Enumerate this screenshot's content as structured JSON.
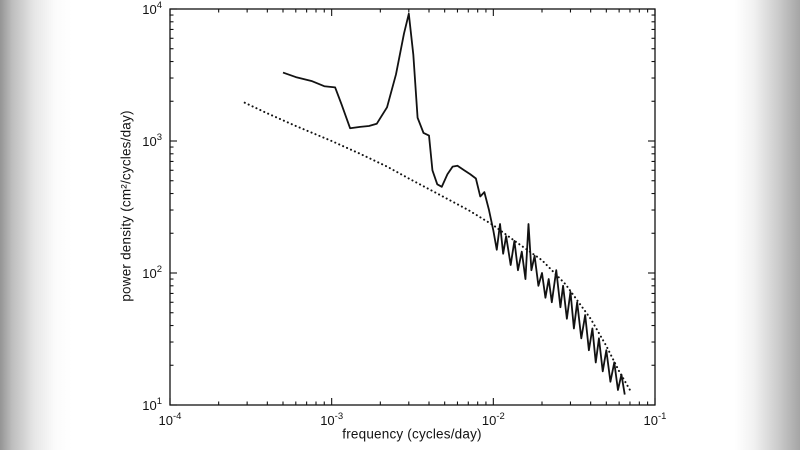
{
  "figure": {
    "background_color": "#ffffff",
    "scan_edge_color": "#a5a5a5",
    "ink_color": "#121212"
  },
  "chart_data": {
    "type": "line",
    "title": "",
    "xlabel": "frequency (cycles/day)",
    "ylabel": "power density (cm²/cycles/day)",
    "xscale": "log",
    "yscale": "log",
    "xlim": [
      0.0001,
      0.1
    ],
    "ylim": [
      10,
      10000
    ],
    "x_exp_range": [
      -4,
      -1
    ],
    "y_exp_range": [
      1,
      4
    ],
    "tick_base": "10",
    "x_tick_exponents": [
      -4,
      -3,
      -2,
      -1
    ],
    "y_tick_exponents": [
      1,
      2,
      3,
      4
    ],
    "grid": false,
    "legend": "none",
    "line_color": "#121212",
    "series": [
      {
        "name": "solid-spectrum-line",
        "style": "solid",
        "points": [
          [
            0.0005,
            3300
          ],
          [
            0.0006,
            3050
          ],
          [
            0.00075,
            2850
          ],
          [
            0.0009,
            2600
          ],
          [
            0.00105,
            2550
          ],
          [
            0.00115,
            1900
          ],
          [
            0.0013,
            1250
          ],
          [
            0.0015,
            1280
          ],
          [
            0.0017,
            1300
          ],
          [
            0.0019,
            1350
          ],
          [
            0.0022,
            1800
          ],
          [
            0.0025,
            3200
          ],
          [
            0.0028,
            6500
          ],
          [
            0.003,
            9200
          ],
          [
            0.0032,
            4500
          ],
          [
            0.0034,
            1500
          ],
          [
            0.0037,
            1150
          ],
          [
            0.004,
            1100
          ],
          [
            0.0042,
            600
          ],
          [
            0.0045,
            470
          ],
          [
            0.0048,
            450
          ],
          [
            0.0052,
            560
          ],
          [
            0.0056,
            640
          ],
          [
            0.006,
            650
          ],
          [
            0.0066,
            600
          ],
          [
            0.0072,
            560
          ],
          [
            0.0078,
            520
          ],
          [
            0.0083,
            380
          ],
          [
            0.0088,
            410
          ],
          [
            0.0094,
            300
          ],
          [
            0.01,
            210
          ],
          [
            0.0105,
            150
          ],
          [
            0.011,
            235
          ],
          [
            0.0115,
            140
          ],
          [
            0.012,
            190
          ],
          [
            0.0128,
            115
          ],
          [
            0.0135,
            175
          ],
          [
            0.0142,
            105
          ],
          [
            0.015,
            145
          ],
          [
            0.0158,
            90
          ],
          [
            0.0165,
            235
          ],
          [
            0.0172,
            105
          ],
          [
            0.018,
            135
          ],
          [
            0.019,
            80
          ],
          [
            0.02,
            100
          ],
          [
            0.021,
            65
          ],
          [
            0.022,
            90
          ],
          [
            0.023,
            60
          ],
          [
            0.0245,
            105
          ],
          [
            0.026,
            55
          ],
          [
            0.027,
            80
          ],
          [
            0.0285,
            45
          ],
          [
            0.03,
            72
          ],
          [
            0.0315,
            38
          ],
          [
            0.033,
            60
          ],
          [
            0.035,
            32
          ],
          [
            0.037,
            48
          ],
          [
            0.039,
            26
          ],
          [
            0.041,
            38
          ],
          [
            0.043,
            21
          ],
          [
            0.045,
            32
          ],
          [
            0.0475,
            18
          ],
          [
            0.05,
            26
          ],
          [
            0.053,
            15
          ],
          [
            0.056,
            21
          ],
          [
            0.059,
            13
          ],
          [
            0.062,
            17
          ],
          [
            0.065,
            12
          ]
        ]
      },
      {
        "name": "dotted-fit-line",
        "style": "dotted",
        "points": [
          [
            0.00029,
            1950
          ],
          [
            0.0004,
            1620
          ],
          [
            0.0006,
            1300
          ],
          [
            0.001,
            1000
          ],
          [
            0.0015,
            800
          ],
          [
            0.0022,
            640
          ],
          [
            0.003,
            520
          ],
          [
            0.0045,
            400
          ],
          [
            0.007,
            300
          ],
          [
            0.01,
            230
          ],
          [
            0.014,
            170
          ],
          [
            0.02,
            125
          ],
          [
            0.028,
            82
          ],
          [
            0.04,
            45
          ],
          [
            0.05,
            28
          ],
          [
            0.06,
            18
          ],
          [
            0.07,
            13
          ]
        ]
      }
    ]
  }
}
